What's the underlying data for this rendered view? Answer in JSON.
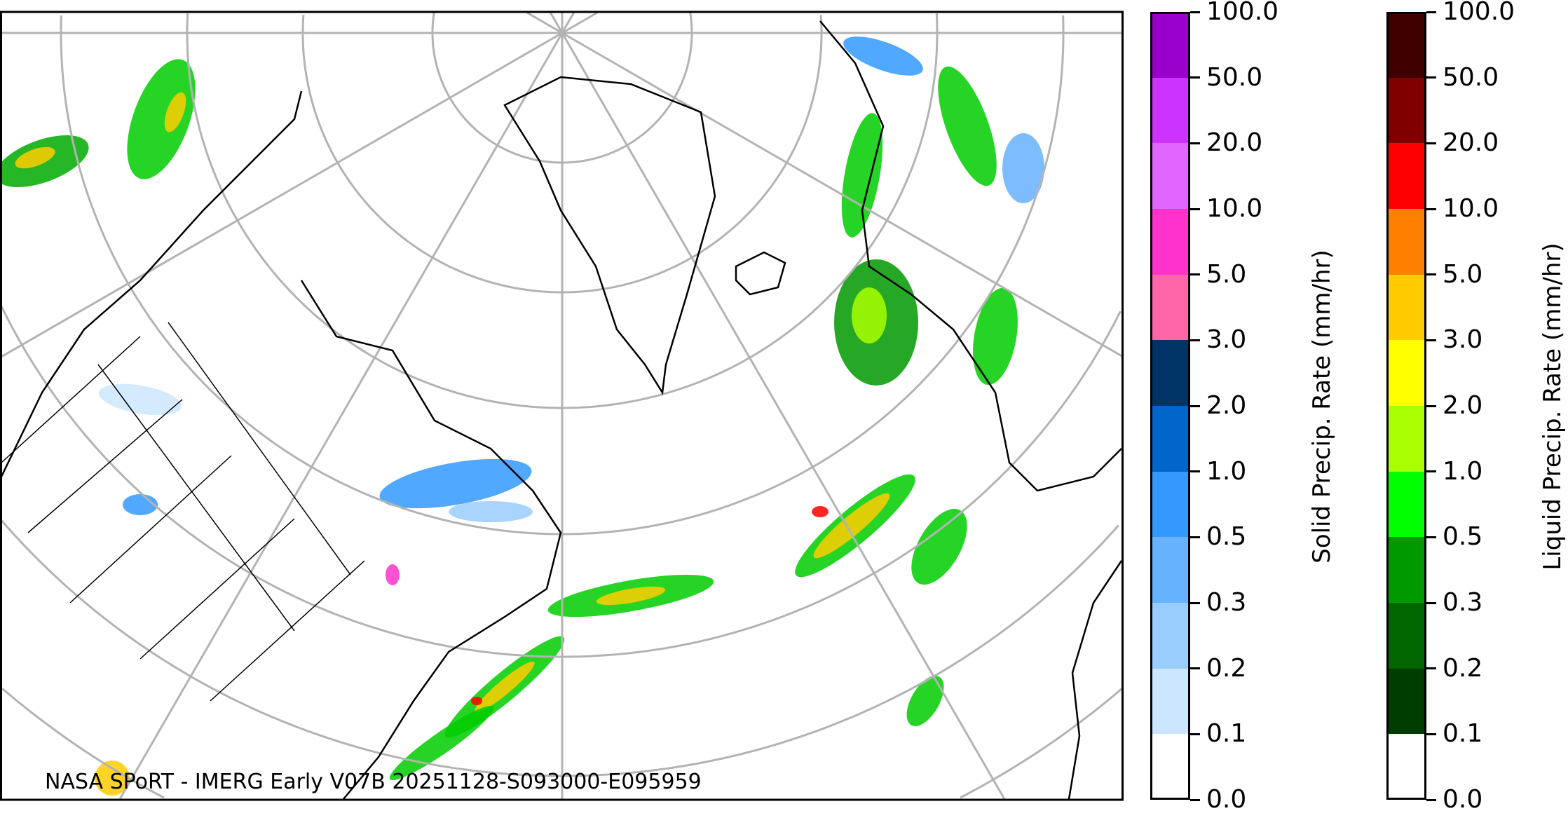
{
  "caption": "NASA SPoRT - IMERG Early V07B 20251128-S093000-E095959",
  "colorbars": [
    {
      "label": "Solid Precip. Rate (mm/hr)",
      "ticks": [
        "0.0",
        "0.1",
        "0.2",
        "0.3",
        "0.5",
        "1.0",
        "2.0",
        "3.0",
        "5.0",
        "10.0",
        "20.0",
        "50.0",
        "100.0"
      ],
      "colors": [
        "#ffffff",
        "#cce6ff",
        "#99ccff",
        "#66b2ff",
        "#3399ff",
        "#0066cc",
        "#003366",
        "#ff66aa",
        "#ff33cc",
        "#e066ff",
        "#cc33ff",
        "#9900cc"
      ]
    },
    {
      "label": "Liquid Precip. Rate (mm/hr)",
      "ticks": [
        "0.0",
        "0.1",
        "0.2",
        "0.3",
        "0.5",
        "1.0",
        "2.0",
        "3.0",
        "5.0",
        "10.0",
        "20.0",
        "50.0",
        "100.0"
      ],
      "colors": [
        "#ffffff",
        "#003d00",
        "#006600",
        "#009900",
        "#00ff00",
        "#aaff00",
        "#ffff00",
        "#ffcc00",
        "#ff8000",
        "#ff0000",
        "#800000",
        "#400000"
      ]
    }
  ],
  "map": {
    "projection": "polar-stereographic",
    "graticule_color": "#b3b3b3",
    "coastline_color": "#000000"
  }
}
